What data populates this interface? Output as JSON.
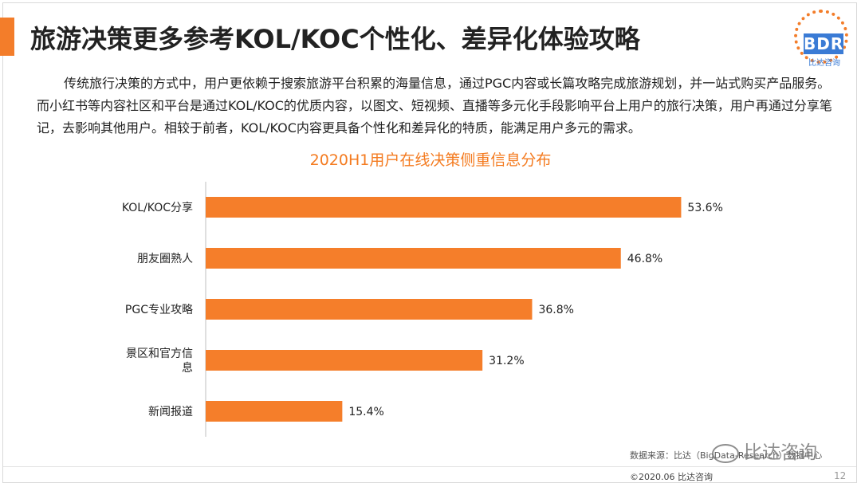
{
  "header": {
    "title": "旅游决策更多参考KOL/KOC个性化、差异化体验攻略"
  },
  "logo": {
    "brand": "BDR",
    "subtitle": "比达咨询"
  },
  "body": {
    "paragraph": "传统旅行决策的方式中，用户更依赖于搜索旅游平台积累的海量信息，通过PGC内容或长篇攻略完成旅游规划，并一站式购买产品服务。而小红书等内容社区和平台是通过KOL/KOC的优质内容，以图文、短视频、直播等多元化手段影响平台上用户的旅行决策，用户再通过分享笔记，去影响其他用户。相较于前者，KOL/KOC内容更具备个性化和差异化的特质，能满足用户多元的需求。"
  },
  "chart_data": {
    "type": "bar",
    "orientation": "horizontal",
    "title": "2020H1用户在线决策侧重信息分布",
    "categories": [
      "KOL/KOC分享",
      "朋友圈熟人",
      "PGC专业攻略",
      "景区和官方信息",
      "新闻报道"
    ],
    "values": [
      53.6,
      46.8,
      36.8,
      31.2,
      15.4
    ],
    "value_labels": [
      "53.6%",
      "46.8%",
      "36.8%",
      "31.2%",
      "15.4%"
    ],
    "xlim": [
      0,
      55
    ],
    "unit": "%"
  },
  "footer": {
    "source": "数据来源：比达（BigData-Research）数据中心",
    "watermark": "比达咨询",
    "copyright": "©2020.06  比达咨询",
    "page_number": "12"
  },
  "colors": {
    "accent": "#f37d2a",
    "bar": "#f57e2a",
    "chart_title": "#f47b20",
    "logo_blue": "#3a7bd5"
  }
}
